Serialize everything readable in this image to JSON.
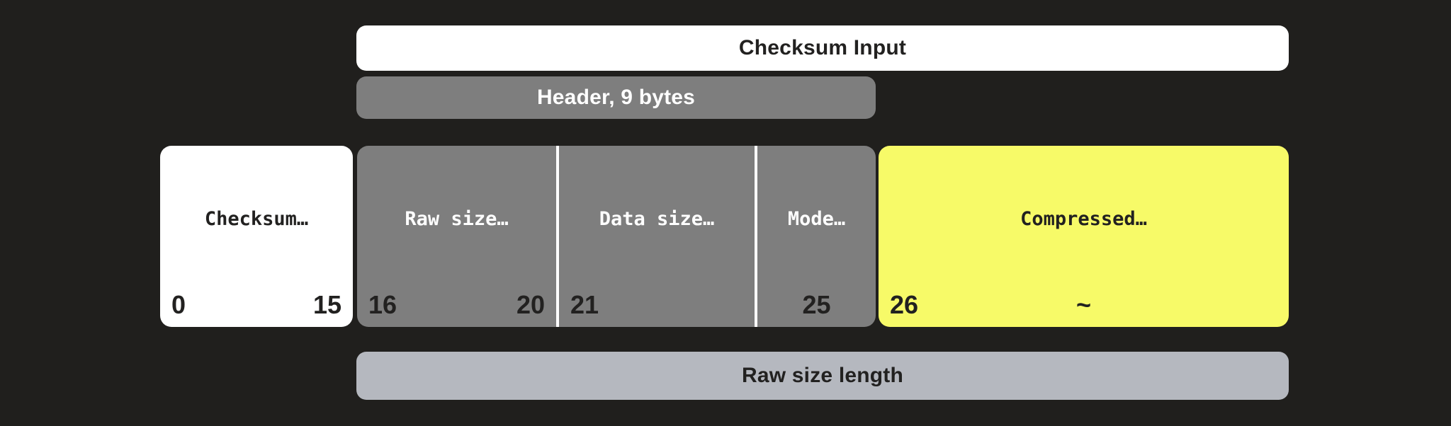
{
  "title_bar": {
    "label": "Checksum Input"
  },
  "header_bar": {
    "label": "Header, 9 bytes"
  },
  "byte_blocks": [
    {
      "name": "checksum",
      "label": "Checksum…",
      "start": "0",
      "mid": "",
      "end": "15"
    },
    {
      "name": "raw-size",
      "label": "Raw size…",
      "start": "16",
      "mid": "",
      "end": "20"
    },
    {
      "name": "data-size",
      "label": "Data size…",
      "start": "21",
      "mid": "",
      "end": ""
    },
    {
      "name": "mode",
      "label": "Mode…",
      "start": "",
      "mid": "25",
      "end": ""
    },
    {
      "name": "compressed",
      "label": "Compressed…",
      "start": "26",
      "mid": "~",
      "end": ""
    }
  ],
  "footer_bar": {
    "label": "Raw size length"
  },
  "colors": {
    "background": "#201f1d",
    "block_white": "#ffffff",
    "block_gray": "#7e7e7e",
    "block_yellow": "#f7fa68",
    "footer_gray": "#b5b8bf",
    "divider_white": "#ffffff",
    "text_dark": "#222120",
    "text_light": "#ffffff"
  }
}
